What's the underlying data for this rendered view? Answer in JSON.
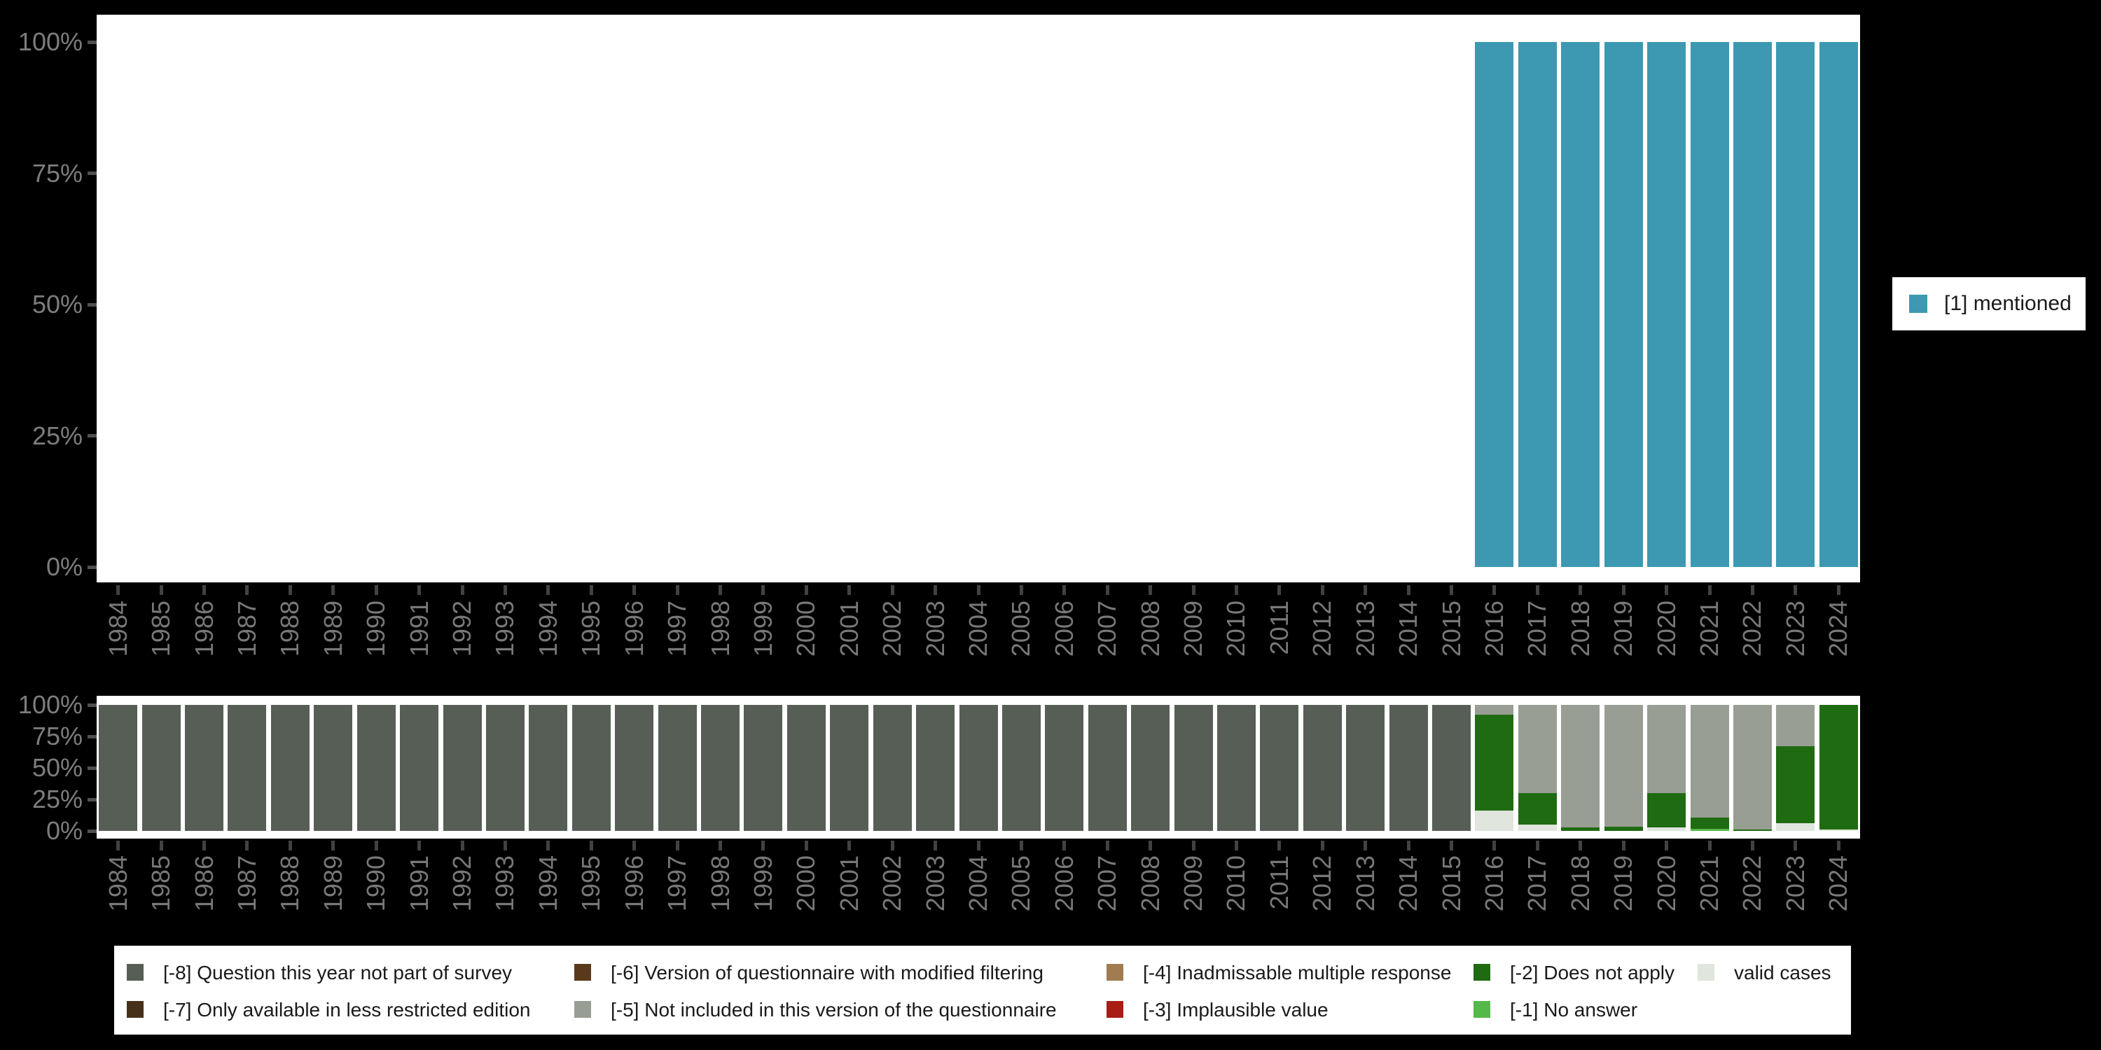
{
  "colors": {
    "mentioned": "#3c99b1",
    "-8": "#565e56",
    "-7": "#47301a",
    "-6": "#58391b",
    "-5": "#999e94",
    "-4": "#a17c50",
    "-3": "#a81e15",
    "-2": "#1f6b12",
    "-1": "#55b84a",
    "valid": "#e0e5dd"
  },
  "right_legend": {
    "label": "[1] mentioned",
    "key": "mentioned"
  },
  "chart_data": [
    {
      "type": "bar",
      "stacked": true,
      "id": "valid-answers",
      "title": "",
      "xlabel": "",
      "ylabel": "",
      "ylim": [
        0,
        100
      ],
      "grid": false,
      "y_tick_labels": [
        "100%",
        "75%",
        "50%",
        "25%",
        "0%"
      ],
      "x": [
        1984,
        1985,
        1986,
        1987,
        1988,
        1989,
        1990,
        1991,
        1992,
        1993,
        1994,
        1995,
        1996,
        1997,
        1998,
        1999,
        2000,
        2001,
        2002,
        2003,
        2004,
        2005,
        2006,
        2007,
        2008,
        2009,
        2010,
        2011,
        2012,
        2013,
        2014,
        2015,
        2016,
        2017,
        2018,
        2019,
        2020,
        2021,
        2022,
        2023,
        2024
      ],
      "legend": {
        "position": "right",
        "items": [
          {
            "key": "mentioned",
            "label": "[1] mentioned"
          }
        ]
      },
      "bars": [
        {
          "year": 2016,
          "segments": [
            [
              "mentioned",
              100
            ]
          ]
        },
        {
          "year": 2017,
          "segments": [
            [
              "mentioned",
              100
            ]
          ]
        },
        {
          "year": 2018,
          "segments": [
            [
              "mentioned",
              100
            ]
          ]
        },
        {
          "year": 2019,
          "segments": [
            [
              "mentioned",
              100
            ]
          ]
        },
        {
          "year": 2020,
          "segments": [
            [
              "mentioned",
              100
            ]
          ]
        },
        {
          "year": 2021,
          "segments": [
            [
              "mentioned",
              100
            ]
          ]
        },
        {
          "year": 2022,
          "segments": [
            [
              "mentioned",
              100
            ]
          ]
        },
        {
          "year": 2023,
          "segments": [
            [
              "mentioned",
              100
            ]
          ]
        },
        {
          "year": 2024,
          "segments": [
            [
              "mentioned",
              100
            ]
          ]
        }
      ]
    },
    {
      "type": "bar",
      "stacked": true,
      "id": "missing-values",
      "title": "",
      "xlabel": "",
      "ylabel": "",
      "ylim": [
        0,
        100
      ],
      "grid": false,
      "y_tick_labels": [
        "100%",
        "75%",
        "50%",
        "25%",
        "0%"
      ],
      "x": [
        1984,
        1985,
        1986,
        1987,
        1988,
        1989,
        1990,
        1991,
        1992,
        1993,
        1994,
        1995,
        1996,
        1997,
        1998,
        1999,
        2000,
        2001,
        2002,
        2003,
        2004,
        2005,
        2006,
        2007,
        2008,
        2009,
        2010,
        2011,
        2012,
        2013,
        2014,
        2015,
        2016,
        2017,
        2018,
        2019,
        2020,
        2021,
        2022,
        2023,
        2024
      ],
      "bars": [
        {
          "year": 1984,
          "segments": [
            [
              "-8",
              100
            ]
          ]
        },
        {
          "year": 1985,
          "segments": [
            [
              "-8",
              100
            ]
          ]
        },
        {
          "year": 1986,
          "segments": [
            [
              "-8",
              100
            ]
          ]
        },
        {
          "year": 1987,
          "segments": [
            [
              "-8",
              100
            ]
          ]
        },
        {
          "year": 1988,
          "segments": [
            [
              "-8",
              100
            ]
          ]
        },
        {
          "year": 1989,
          "segments": [
            [
              "-8",
              100
            ]
          ]
        },
        {
          "year": 1990,
          "segments": [
            [
              "-8",
              100
            ]
          ]
        },
        {
          "year": 1991,
          "segments": [
            [
              "-8",
              100
            ]
          ]
        },
        {
          "year": 1992,
          "segments": [
            [
              "-8",
              100
            ]
          ]
        },
        {
          "year": 1993,
          "segments": [
            [
              "-8",
              100
            ]
          ]
        },
        {
          "year": 1994,
          "segments": [
            [
              "-8",
              100
            ]
          ]
        },
        {
          "year": 1995,
          "segments": [
            [
              "-8",
              100
            ]
          ]
        },
        {
          "year": 1996,
          "segments": [
            [
              "-8",
              100
            ]
          ]
        },
        {
          "year": 1997,
          "segments": [
            [
              "-8",
              100
            ]
          ]
        },
        {
          "year": 1998,
          "segments": [
            [
              "-8",
              100
            ]
          ]
        },
        {
          "year": 1999,
          "segments": [
            [
              "-8",
              100
            ]
          ]
        },
        {
          "year": 2000,
          "segments": [
            [
              "-8",
              100
            ]
          ]
        },
        {
          "year": 2001,
          "segments": [
            [
              "-8",
              100
            ]
          ]
        },
        {
          "year": 2002,
          "segments": [
            [
              "-8",
              100
            ]
          ]
        },
        {
          "year": 2003,
          "segments": [
            [
              "-8",
              100
            ]
          ]
        },
        {
          "year": 2004,
          "segments": [
            [
              "-8",
              100
            ]
          ]
        },
        {
          "year": 2005,
          "segments": [
            [
              "-8",
              100
            ]
          ]
        },
        {
          "year": 2006,
          "segments": [
            [
              "-8",
              100
            ]
          ]
        },
        {
          "year": 2007,
          "segments": [
            [
              "-8",
              100
            ]
          ]
        },
        {
          "year": 2008,
          "segments": [
            [
              "-8",
              100
            ]
          ]
        },
        {
          "year": 2009,
          "segments": [
            [
              "-8",
              100
            ]
          ]
        },
        {
          "year": 2010,
          "segments": [
            [
              "-8",
              100
            ]
          ]
        },
        {
          "year": 2011,
          "segments": [
            [
              "-8",
              100
            ]
          ]
        },
        {
          "year": 2012,
          "segments": [
            [
              "-8",
              100
            ]
          ]
        },
        {
          "year": 2013,
          "segments": [
            [
              "-8",
              100
            ]
          ]
        },
        {
          "year": 2014,
          "segments": [
            [
              "-8",
              100
            ]
          ]
        },
        {
          "year": 2015,
          "segments": [
            [
              "-8",
              100
            ]
          ]
        },
        {
          "year": 2016,
          "segments": [
            [
              "valid",
              16
            ],
            [
              "-2",
              76.5
            ],
            [
              "-5",
              7.5
            ]
          ]
        },
        {
          "year": 2017,
          "segments": [
            [
              "valid",
              5
            ],
            [
              "-2",
              25
            ],
            [
              "-5",
              70
            ]
          ]
        },
        {
          "year": 2018,
          "segments": [
            [
              "-2",
              3
            ],
            [
              "-5",
              97
            ]
          ]
        },
        {
          "year": 2019,
          "segments": [
            [
              "-2",
              3.5
            ],
            [
              "-5",
              96.5
            ]
          ]
        },
        {
          "year": 2020,
          "segments": [
            [
              "valid",
              3
            ],
            [
              "-2",
              27
            ],
            [
              "-5",
              70
            ]
          ]
        },
        {
          "year": 2021,
          "segments": [
            [
              "-1",
              1.5
            ],
            [
              "-2",
              9
            ],
            [
              "-5",
              89.5
            ]
          ]
        },
        {
          "year": 2022,
          "segments": [
            [
              "-2",
              1
            ],
            [
              "-5",
              99
            ]
          ]
        },
        {
          "year": 2023,
          "segments": [
            [
              "valid",
              6
            ],
            [
              "-2",
              61
            ],
            [
              "-5",
              33
            ]
          ]
        },
        {
          "year": 2024,
          "segments": [
            [
              "valid",
              1
            ],
            [
              "-2",
              99
            ]
          ]
        }
      ],
      "legend": {
        "position": "bottom",
        "columns": [
          [
            {
              "key": "-8",
              "label": "[-8] Question this year not part of survey"
            },
            {
              "key": "-7",
              "label": "[-7] Only available in less restricted edition"
            }
          ],
          [
            {
              "key": "-6",
              "label": "[-6] Version of questionnaire with modified filtering"
            },
            {
              "key": "-5",
              "label": "[-5] Not included in this version of the questionnaire"
            }
          ],
          [
            {
              "key": "-4",
              "label": "[-4] Inadmissable multiple response"
            },
            {
              "key": "-3",
              "label": "[-3] Implausible value"
            }
          ],
          [
            {
              "key": "-2",
              "label": "[-2] Does not apply"
            },
            {
              "key": "-1",
              "label": "[-1] No answer"
            }
          ],
          [
            {
              "key": "valid",
              "label": "valid cases"
            }
          ]
        ]
      }
    }
  ]
}
